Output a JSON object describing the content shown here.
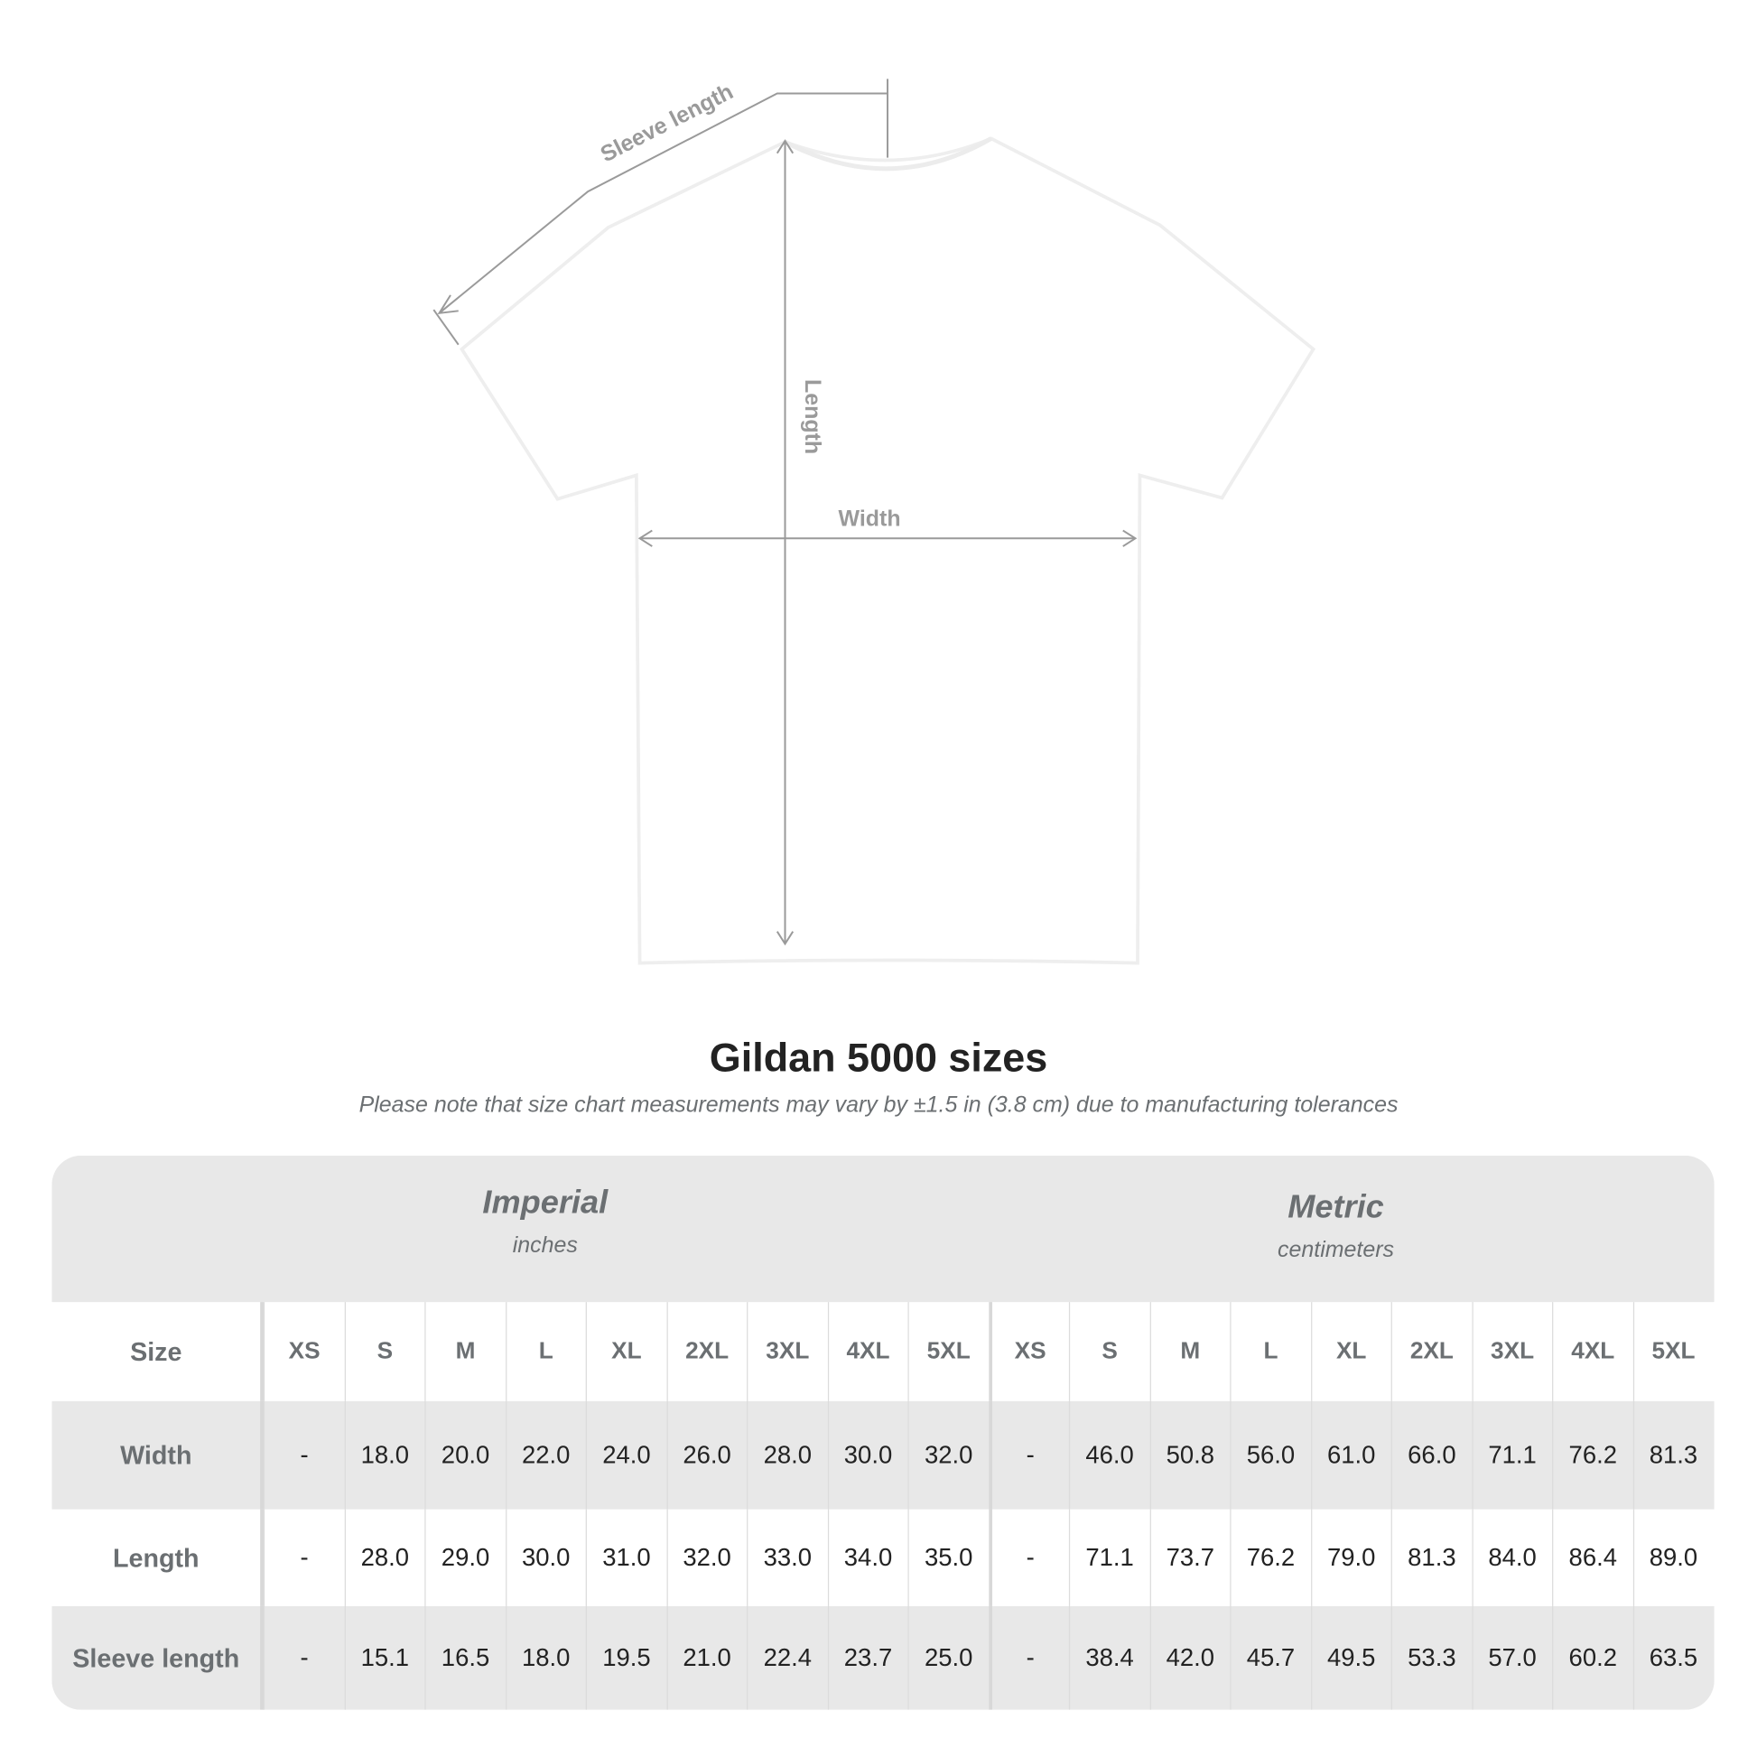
{
  "diagram": {
    "labels": {
      "sleeve": "Sleeve length",
      "length": "Length",
      "width": "Width"
    },
    "shirt_color": "#ffffff",
    "line_color": "#9a9a9a"
  },
  "title": "Gildan 5000 sizes",
  "note": "Please note that size chart measurements may vary by ±1.5 in (3.8 cm) due to manufacturing tolerances",
  "table": {
    "imperial": {
      "title": "Imperial",
      "unit": "inches"
    },
    "metric": {
      "title": "Metric",
      "unit": "centimeters"
    },
    "size_label": "Size",
    "sizes": [
      "XS",
      "S",
      "M",
      "L",
      "XL",
      "2XL",
      "3XL",
      "4XL",
      "5XL"
    ],
    "rows": [
      {
        "label": "Width",
        "imperial": [
          "-",
          "18.0",
          "20.0",
          "22.0",
          "24.0",
          "26.0",
          "28.0",
          "30.0",
          "32.0"
        ],
        "metric": [
          "-",
          "46.0",
          "50.8",
          "56.0",
          "61.0",
          "66.0",
          "71.1",
          "76.2",
          "81.3"
        ]
      },
      {
        "label": "Length",
        "imperial": [
          "-",
          "28.0",
          "29.0",
          "30.0",
          "31.0",
          "32.0",
          "33.0",
          "34.0",
          "35.0"
        ],
        "metric": [
          "-",
          "71.1",
          "73.7",
          "76.2",
          "79.0",
          "81.3",
          "84.0",
          "86.4",
          "89.0"
        ]
      },
      {
        "label": "Sleeve length",
        "imperial": [
          "-",
          "15.1",
          "16.5",
          "18.0",
          "19.5",
          "21.0",
          "22.4",
          "23.7",
          "25.0"
        ],
        "metric": [
          "-",
          "38.4",
          "42.0",
          "45.7",
          "49.5",
          "53.3",
          "57.0",
          "60.2",
          "63.5"
        ]
      }
    ]
  }
}
